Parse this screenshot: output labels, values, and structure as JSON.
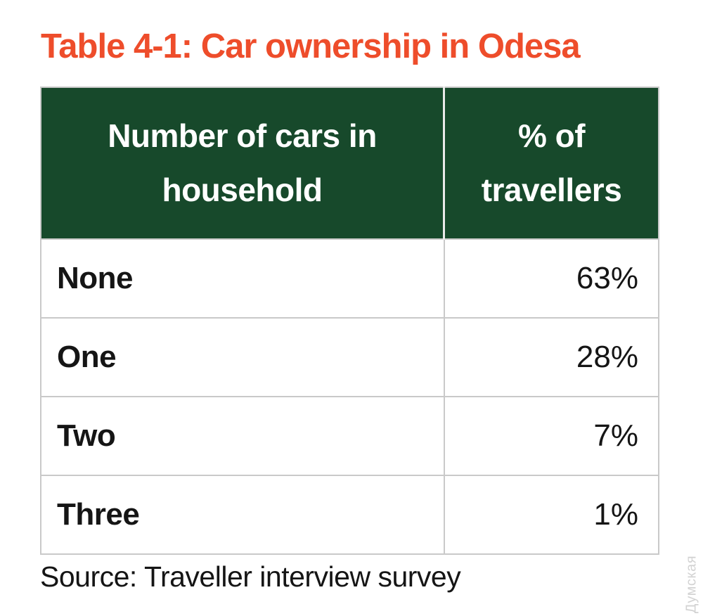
{
  "title": "Table 4-1: Car ownership in Odesa",
  "table": {
    "headers": [
      "Number of cars in household",
      "% of travellers"
    ],
    "rows": [
      {
        "label": "None",
        "value": "63%"
      },
      {
        "label": "One",
        "value": "28%"
      },
      {
        "label": "Two",
        "value": "7%"
      },
      {
        "label": "Three",
        "value": "1%"
      }
    ]
  },
  "source_note": "Source: Traveller interview survey",
  "watermark": "Думская",
  "colors": {
    "header_background": "#17492B",
    "header_text": "#FFFFFF",
    "title_text": "#EE4D2B",
    "body_text": "#151515",
    "table_border": "#C9C9C9",
    "header_divider": "#E9E9E9",
    "watermark_text": "#CFCFCF",
    "page_background": "#FFFFFF"
  },
  "chart_data": {
    "type": "table",
    "title": "Table 4-1: Car ownership in Odesa",
    "columns": [
      "Number of cars in household",
      "% of travellers"
    ],
    "rows": [
      [
        "None",
        "63%"
      ],
      [
        "One",
        "28%"
      ],
      [
        "Two",
        "7%"
      ],
      [
        "Three",
        "1%"
      ]
    ],
    "series": [
      {
        "name": "% of travellers",
        "categories": [
          "None",
          "One",
          "Two",
          "Three"
        ],
        "values": [
          63,
          28,
          7,
          1
        ]
      }
    ],
    "source": "Source: Traveller interview survey",
    "layout_hints": {
      "header_style": "dark-green background, white bold centered text",
      "label_alignment": "left",
      "value_alignment": "right"
    }
  }
}
